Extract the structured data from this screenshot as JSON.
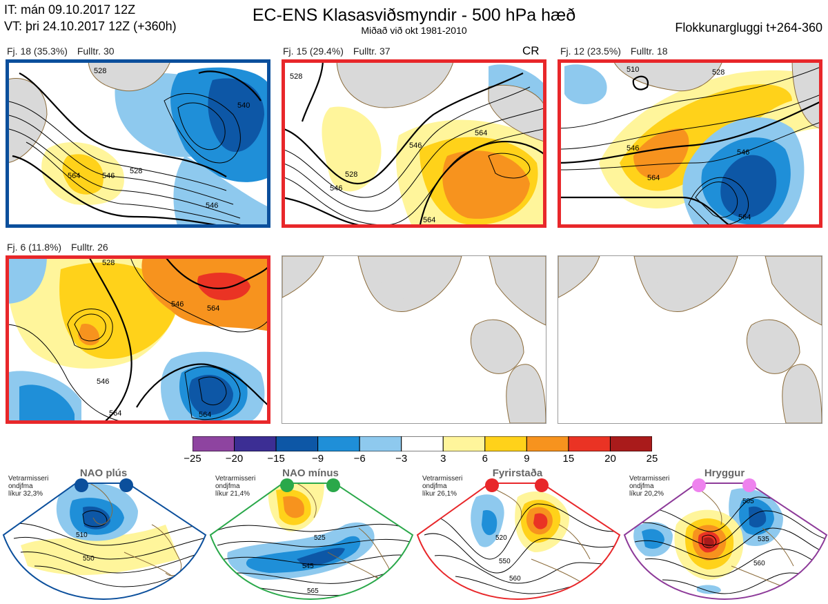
{
  "header": {
    "issue_time": "IT: mán 09.10.2017 12Z",
    "valid_time": "VT: þri 24.10.2017 12Z  (+360h)",
    "title": "EC-ENS Klasasviðsmyndir - 500 hPa hæð",
    "subtitle": "Miðað við okt 1981-2010",
    "window": "Flokkunargluggi t+264-360"
  },
  "colors": {
    "nao_plus": "#0b4f9c",
    "nao_minus": "#2aa84a",
    "blocking": "#e8272a",
    "ridge": "#8d3a99",
    "land": "#d9d9d9"
  },
  "panels": [
    {
      "cluster": "Fj. 18 (35.3%)",
      "representative": "Fulltr. 30",
      "regime": "nao_plus",
      "cr": "",
      "contours": [
        "528",
        "546",
        "564",
        "540",
        "546",
        "528"
      ]
    },
    {
      "cluster": "Fj. 15 (29.4%)",
      "representative": "Fulltr. 37",
      "regime": "blocking",
      "cr": "CR",
      "contours": [
        "528",
        "546",
        "546",
        "528",
        "564",
        "564"
      ]
    },
    {
      "cluster": "Fj. 12 (23.5%)",
      "representative": "Fulltr. 18",
      "regime": "blocking",
      "cr": "",
      "contours": [
        "510",
        "528",
        "546",
        "564",
        "546",
        "564"
      ]
    },
    {
      "cluster": "Fj. 6 (11.8%)",
      "representative": "Fulltr. 26",
      "regime": "blocking",
      "cr": "",
      "contours": [
        "528",
        "546",
        "564",
        "546",
        "564",
        "564"
      ]
    }
  ],
  "chart_data": {
    "type": "heatmap",
    "title": "EC-ENS Klasasviðsmyndir - 500 hPa hæð",
    "colorbar": {
      "ticks": [
        "−25",
        "−20",
        "−15",
        "−9",
        "−6",
        "−3",
        "3",
        "6",
        "9",
        "15",
        "20",
        "25"
      ],
      "colors": [
        "#8e44a0",
        "#3c2e94",
        "#0d57a6",
        "#1f8fd8",
        "#8ec9ee",
        "#ffffff",
        "#fff59b",
        "#ffd21a",
        "#f7931e",
        "#ea3324",
        "#a91b1b"
      ]
    },
    "regimes": [
      {
        "name": "NAO plús",
        "note_lines": [
          "Vetrarmisseri",
          "ondjfma",
          "líkur 32,3%"
        ],
        "labels": [
          "510",
          "550"
        ],
        "color": "#0b4f9c"
      },
      {
        "name": "NAO mínus",
        "note_lines": [
          "Vetrarmisseri",
          "ondjfma",
          "líkur 21,4%"
        ],
        "labels": [
          "525",
          "545",
          "565"
        ],
        "color": "#2aa84a"
      },
      {
        "name": "Fyrirstaða",
        "note_lines": [
          "Vetrarmisseri",
          "ondjfma",
          "líkur 26,1%"
        ],
        "labels": [
          "520",
          "550",
          "560"
        ],
        "color": "#e8272a"
      },
      {
        "name": "Hryggur",
        "note_lines": [
          "Vetrarmisseri",
          "ondjfma",
          "líkur 20,2%"
        ],
        "labels": [
          "505",
          "535",
          "560"
        ],
        "color": "#8d3a99"
      }
    ]
  }
}
